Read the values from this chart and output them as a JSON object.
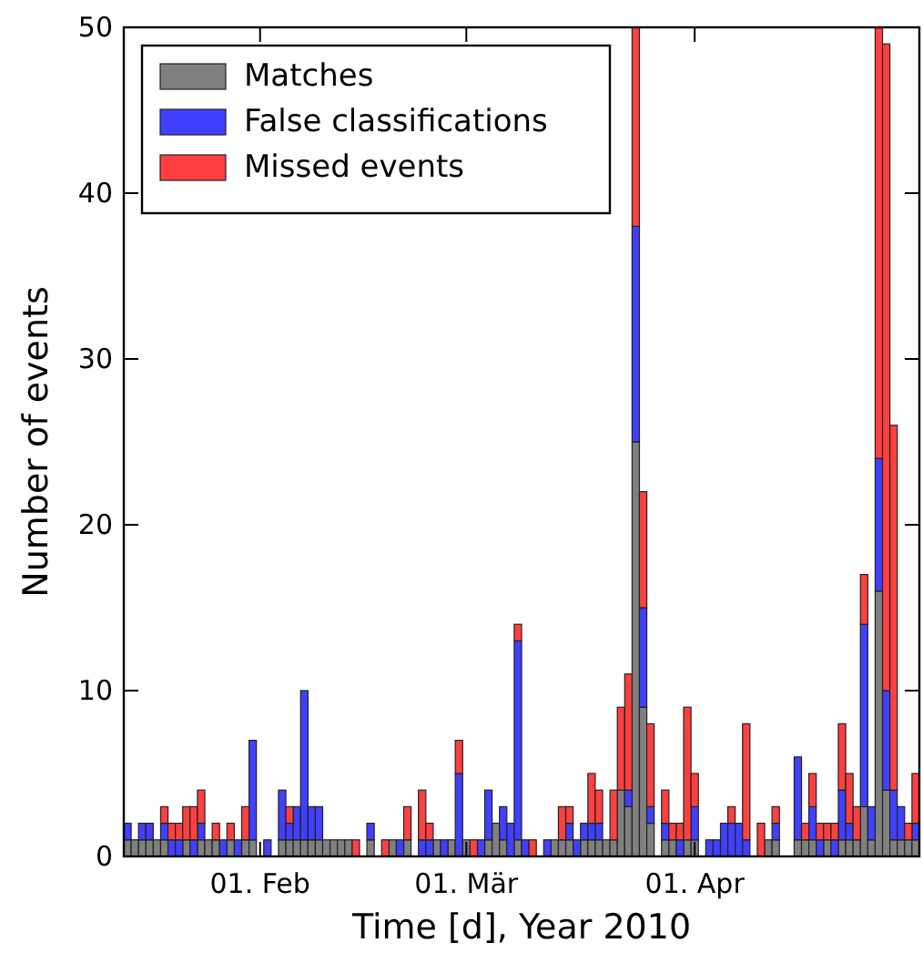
{
  "chart_data": {
    "type": "bar",
    "stacked": true,
    "xlabel": "Time [d], Year 2010",
    "ylabel": "Number of events",
    "x": [
      "2010-01-14",
      "2010-01-15",
      "2010-01-16",
      "2010-01-17",
      "2010-01-18",
      "2010-01-19",
      "2010-01-20",
      "2010-01-21",
      "2010-01-22",
      "2010-01-23",
      "2010-01-24",
      "2010-01-25",
      "2010-01-26",
      "2010-01-27",
      "2010-01-28",
      "2010-01-29",
      "2010-01-30",
      "2010-01-31",
      "2010-02-01",
      "2010-02-02",
      "2010-02-03",
      "2010-02-04",
      "2010-02-05",
      "2010-02-06",
      "2010-02-07",
      "2010-02-08",
      "2010-02-09",
      "2010-02-10",
      "2010-02-11",
      "2010-02-12",
      "2010-02-13",
      "2010-02-14",
      "2010-02-15",
      "2010-02-16",
      "2010-02-17",
      "2010-02-18",
      "2010-02-19",
      "2010-02-20",
      "2010-02-21",
      "2010-02-22",
      "2010-02-23",
      "2010-02-24",
      "2010-02-25",
      "2010-02-26",
      "2010-02-27",
      "2010-02-28",
      "2010-03-01",
      "2010-03-02",
      "2010-03-03",
      "2010-03-04",
      "2010-03-05",
      "2010-03-06",
      "2010-03-07",
      "2010-03-08",
      "2010-03-09",
      "2010-03-10",
      "2010-03-11",
      "2010-03-12",
      "2010-03-13",
      "2010-03-14",
      "2010-03-15",
      "2010-03-16",
      "2010-03-17",
      "2010-03-18",
      "2010-03-19",
      "2010-03-20",
      "2010-03-21",
      "2010-03-22",
      "2010-03-23",
      "2010-03-24",
      "2010-03-25",
      "2010-03-26",
      "2010-03-27",
      "2010-03-28",
      "2010-03-29",
      "2010-03-30",
      "2010-03-31",
      "2010-04-01",
      "2010-04-02",
      "2010-04-03",
      "2010-04-04",
      "2010-04-05",
      "2010-04-06",
      "2010-04-07",
      "2010-04-08",
      "2010-04-09",
      "2010-04-10",
      "2010-04-11",
      "2010-04-12",
      "2010-04-13",
      "2010-04-14",
      "2010-04-15",
      "2010-04-16",
      "2010-04-17",
      "2010-04-18",
      "2010-04-19",
      "2010-04-20",
      "2010-04-21",
      "2010-04-22",
      "2010-04-23",
      "2010-04-24",
      "2010-04-25",
      "2010-04-26",
      "2010-04-27",
      "2010-04-28",
      "2010-04-29",
      "2010-04-30",
      "2010-05-01"
    ],
    "series": [
      {
        "name": "Matches",
        "color": "#808080",
        "values": [
          1,
          1,
          1,
          1,
          1,
          1,
          0,
          0,
          1,
          0,
          1,
          1,
          1,
          0,
          1,
          0,
          1,
          1,
          0,
          0,
          0,
          1,
          1,
          1,
          1,
          1,
          1,
          1,
          1,
          1,
          1,
          0,
          0,
          1,
          0,
          0,
          1,
          0,
          1,
          0,
          0,
          0,
          1,
          0,
          1,
          0,
          1,
          0,
          0,
          1,
          2,
          1,
          0,
          1,
          0,
          0,
          0,
          0,
          1,
          1,
          1,
          0,
          1,
          1,
          1,
          1,
          1,
          4,
          3,
          25,
          9,
          2,
          0,
          1,
          1,
          0,
          1,
          1,
          0,
          0,
          0,
          0,
          0,
          0,
          0,
          0,
          0,
          1,
          1,
          0,
          0,
          1,
          1,
          1,
          0,
          1,
          0,
          1,
          1,
          1,
          3,
          1,
          16,
          4,
          1,
          1,
          1,
          1
        ]
      },
      {
        "name": "False classifications",
        "color": "#4040ff",
        "values": [
          1,
          0,
          1,
          1,
          0,
          1,
          1,
          1,
          0,
          1,
          1,
          0,
          0,
          1,
          0,
          1,
          0,
          6,
          0,
          1,
          0,
          3,
          1,
          2,
          9,
          2,
          2,
          0,
          0,
          0,
          0,
          0,
          0,
          1,
          0,
          0,
          0,
          1,
          0,
          0,
          1,
          1,
          0,
          1,
          0,
          5,
          0,
          0,
          1,
          3,
          0,
          2,
          2,
          12,
          1,
          0,
          0,
          1,
          0,
          0,
          1,
          1,
          1,
          1,
          1,
          0,
          0,
          0,
          1,
          13,
          6,
          1,
          0,
          1,
          0,
          1,
          0,
          2,
          0,
          1,
          1,
          2,
          2,
          2,
          1,
          0,
          0,
          0,
          1,
          0,
          0,
          5,
          0,
          2,
          1,
          0,
          1,
          3,
          1,
          0,
          11,
          2,
          8,
          6,
          3,
          2,
          0,
          1
        ]
      },
      {
        "name": "Missed events",
        "color": "#ff4040",
        "values": [
          0,
          0,
          0,
          0,
          0,
          1,
          1,
          1,
          2,
          2,
          2,
          0,
          1,
          0,
          1,
          0,
          2,
          0,
          0,
          0,
          0,
          0,
          1,
          0,
          0,
          0,
          0,
          0,
          0,
          0,
          0,
          1,
          0,
          0,
          0,
          1,
          0,
          0,
          2,
          0,
          3,
          1,
          0,
          0,
          0,
          2,
          0,
          1,
          0,
          0,
          0,
          0,
          0,
          1,
          0,
          1,
          0,
          0,
          0,
          2,
          1,
          0,
          0,
          3,
          2,
          0,
          3,
          5,
          7,
          12,
          7,
          5,
          0,
          2,
          1,
          1,
          8,
          2,
          0,
          0,
          0,
          0,
          1,
          0,
          7,
          0,
          2,
          0,
          1,
          0,
          0,
          0,
          1,
          2,
          1,
          1,
          1,
          4,
          3,
          2,
          3,
          0,
          26,
          39,
          22,
          0,
          1,
          3
        ]
      }
    ],
    "xlim": [
      "2010-01-13T12:00",
      "2010-05-01T12:00"
    ],
    "xticks": [
      {
        "value": "2010-02-01",
        "label": "01. Feb"
      },
      {
        "value": "2010-03-01",
        "label": "01. Mär"
      },
      {
        "value": "2010-04-01",
        "label": "01. Apr"
      }
    ],
    "ylim": [
      0,
      50
    ],
    "yticks": [
      0,
      10,
      20,
      30,
      40,
      50
    ],
    "grid": false,
    "legend": "top left"
  }
}
